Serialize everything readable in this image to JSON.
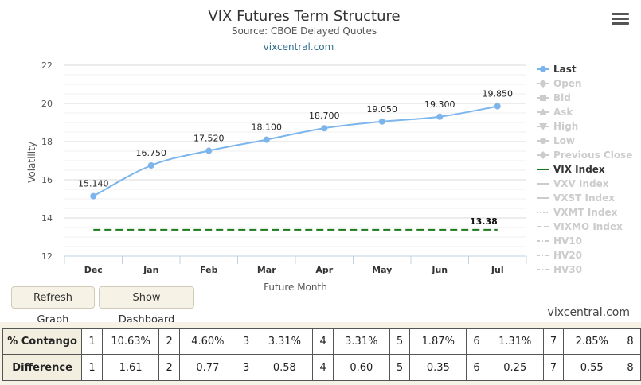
{
  "chart_data": {
    "type": "line",
    "title": "VIX Futures Term Structure",
    "subtitle": "Source: CBOE Delayed Quotes",
    "link": "vixcentral.com",
    "xlabel": "Future Month",
    "ylabel": "Volatility",
    "categories": [
      "Dec",
      "Jan",
      "Feb",
      "Mar",
      "Apr",
      "May",
      "Jun",
      "Jul"
    ],
    "ylim": [
      12,
      22
    ],
    "yticks": [
      12,
      14,
      16,
      18,
      20,
      22
    ],
    "grid": true,
    "series": [
      {
        "name": "Last",
        "type": "line",
        "color": "#7cb5ec",
        "values": [
          15.14,
          16.75,
          17.52,
          18.1,
          18.7,
          19.05,
          19.3,
          19.85
        ],
        "labels": [
          "15.140",
          "16.750",
          "17.520",
          "18.100",
          "18.700",
          "19.050",
          "19.300",
          "19.850"
        ]
      },
      {
        "name": "VIX Index",
        "type": "dashed-line",
        "color": "#1a7a1a",
        "value": 13.38,
        "label": "13.38"
      }
    ],
    "legend": {
      "placement": "right",
      "items": [
        {
          "name": "Last",
          "symbol": "circle",
          "active": true,
          "color": "#7cb5ec"
        },
        {
          "name": "Open",
          "symbol": "diamond",
          "active": false
        },
        {
          "name": "Bid",
          "symbol": "square",
          "active": false
        },
        {
          "name": "Ask",
          "symbol": "triangle",
          "active": false
        },
        {
          "name": "High",
          "symbol": "triangle-down",
          "active": false
        },
        {
          "name": "Low",
          "symbol": "circle",
          "active": false
        },
        {
          "name": "Previous Close",
          "symbol": "diamond",
          "active": false
        },
        {
          "name": "VIX Index",
          "symbol": "line",
          "active": true,
          "color": "#1a7a1a"
        },
        {
          "name": "VXV Index",
          "symbol": "line",
          "active": false
        },
        {
          "name": "VXST Index",
          "symbol": "line",
          "active": false
        },
        {
          "name": "VXMT Index",
          "symbol": "dotted",
          "active": false
        },
        {
          "name": "VIXMO Index",
          "symbol": "dashed",
          "active": false
        },
        {
          "name": "HV10",
          "symbol": "dashdot",
          "active": false
        },
        {
          "name": "HV20",
          "symbol": "dashdot",
          "active": false
        },
        {
          "name": "HV30",
          "symbol": "dashdot",
          "active": false
        }
      ]
    }
  },
  "menu_icon": "hamburger-icon",
  "buttons": {
    "refresh": "Refresh Graph",
    "dashboard": "Show Dashboard"
  },
  "credit": "vixcentral.com",
  "table": {
    "contango": {
      "label": "% Contango",
      "cells": [
        {
          "idx": "1",
          "val": "10.63%"
        },
        {
          "idx": "2",
          "val": "4.60%"
        },
        {
          "idx": "3",
          "val": "3.31%"
        },
        {
          "idx": "4",
          "val": "3.31%"
        },
        {
          "idx": "5",
          "val": "1.87%"
        },
        {
          "idx": "6",
          "val": "1.31%"
        },
        {
          "idx": "7",
          "val": "2.85%"
        }
      ],
      "last_idx": "8"
    },
    "difference": {
      "label": "Difference",
      "cells": [
        {
          "idx": "1",
          "val": "1.61"
        },
        {
          "idx": "2",
          "val": "0.77"
        },
        {
          "idx": "3",
          "val": "0.58"
        },
        {
          "idx": "4",
          "val": "0.60"
        },
        {
          "idx": "5",
          "val": "0.35"
        },
        {
          "idx": "6",
          "val": "0.25"
        },
        {
          "idx": "7",
          "val": "0.55"
        }
      ],
      "last_idx": "8"
    }
  }
}
